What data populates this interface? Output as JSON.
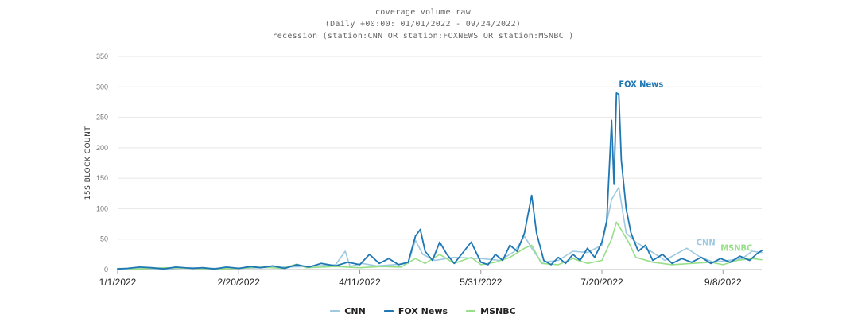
{
  "chart_data": {
    "type": "line",
    "title": "coverage volume raw",
    "subtitle_lines": [
      "(Daily +00:00: 01/01/2022 - 09/24/2022)",
      "recession (station:CNN OR station:FOXNEWS OR station:MSNBC )"
    ],
    "ylabel": "15S BLOCK COUNT",
    "xlabel": "",
    "ylim": [
      0,
      350
    ],
    "yticks": [
      0,
      50,
      100,
      150,
      200,
      250,
      300,
      350
    ],
    "x_start": "2022-01-01",
    "x_end": "2022-09-24",
    "xticks": [
      {
        "date": "2022-01-01",
        "label": "1/1/2022"
      },
      {
        "date": "2022-02-20",
        "label": "2/20/2022"
      },
      {
        "date": "2022-04-11",
        "label": "4/11/2022"
      },
      {
        "date": "2022-05-31",
        "label": "5/31/2022"
      },
      {
        "date": "2022-07-20",
        "label": "7/20/2022"
      },
      {
        "date": "2022-09-08",
        "label": "9/8/2022"
      }
    ],
    "grid": true,
    "legend_position": "bottom",
    "series": [
      {
        "name": "CNN",
        "color": "#9ecae1",
        "points": [
          [
            "2022-01-01",
            0
          ],
          [
            "2022-01-10",
            2
          ],
          [
            "2022-01-20",
            1
          ],
          [
            "2022-02-01",
            3
          ],
          [
            "2022-02-10",
            2
          ],
          [
            "2022-02-20",
            2
          ],
          [
            "2022-03-01",
            3
          ],
          [
            "2022-03-10",
            4
          ],
          [
            "2022-03-20",
            5
          ],
          [
            "2022-04-01",
            8
          ],
          [
            "2022-04-05",
            30
          ],
          [
            "2022-04-07",
            5
          ],
          [
            "2022-04-12",
            10
          ],
          [
            "2022-04-18",
            6
          ],
          [
            "2022-04-25",
            8
          ],
          [
            "2022-05-01",
            10
          ],
          [
            "2022-05-04",
            48
          ],
          [
            "2022-05-07",
            25
          ],
          [
            "2022-05-12",
            15
          ],
          [
            "2022-05-20",
            20
          ],
          [
            "2022-05-31",
            18
          ],
          [
            "2022-06-08",
            15
          ],
          [
            "2022-06-14",
            30
          ],
          [
            "2022-06-18",
            55
          ],
          [
            "2022-06-21",
            35
          ],
          [
            "2022-06-25",
            12
          ],
          [
            "2022-07-02",
            15
          ],
          [
            "2022-07-08",
            30
          ],
          [
            "2022-07-14",
            28
          ],
          [
            "2022-07-20",
            40
          ],
          [
            "2022-07-24",
            115
          ],
          [
            "2022-07-27",
            135
          ],
          [
            "2022-07-30",
            60
          ],
          [
            "2022-08-03",
            45
          ],
          [
            "2022-08-10",
            28
          ],
          [
            "2022-08-15",
            15
          ],
          [
            "2022-08-24",
            35
          ],
          [
            "2022-08-29",
            22
          ],
          [
            "2022-09-04",
            12
          ],
          [
            "2022-09-10",
            15
          ],
          [
            "2022-09-16",
            18
          ],
          [
            "2022-09-20",
            30
          ],
          [
            "2022-09-24",
            28
          ]
        ]
      },
      {
        "name": "FOX News",
        "color": "#1f77b4",
        "points": [
          [
            "2022-01-01",
            1
          ],
          [
            "2022-01-05",
            2
          ],
          [
            "2022-01-10",
            4
          ],
          [
            "2022-01-15",
            3
          ],
          [
            "2022-01-20",
            1
          ],
          [
            "2022-01-25",
            4
          ],
          [
            "2022-02-01",
            2
          ],
          [
            "2022-02-05",
            3
          ],
          [
            "2022-02-10",
            1
          ],
          [
            "2022-02-15",
            4
          ],
          [
            "2022-02-20",
            2
          ],
          [
            "2022-02-25",
            5
          ],
          [
            "2022-03-01",
            3
          ],
          [
            "2022-03-06",
            6
          ],
          [
            "2022-03-11",
            2
          ],
          [
            "2022-03-16",
            8
          ],
          [
            "2022-03-21",
            4
          ],
          [
            "2022-03-26",
            10
          ],
          [
            "2022-04-01",
            6
          ],
          [
            "2022-04-06",
            12
          ],
          [
            "2022-04-11",
            8
          ],
          [
            "2022-04-15",
            25
          ],
          [
            "2022-04-19",
            10
          ],
          [
            "2022-04-23",
            18
          ],
          [
            "2022-04-27",
            8
          ],
          [
            "2022-05-01",
            12
          ],
          [
            "2022-05-04",
            55
          ],
          [
            "2022-05-06",
            66
          ],
          [
            "2022-05-08",
            30
          ],
          [
            "2022-05-11",
            15
          ],
          [
            "2022-05-14",
            45
          ],
          [
            "2022-05-17",
            25
          ],
          [
            "2022-05-20",
            10
          ],
          [
            "2022-05-24",
            30
          ],
          [
            "2022-05-27",
            45
          ],
          [
            "2022-05-31",
            12
          ],
          [
            "2022-06-03",
            8
          ],
          [
            "2022-06-06",
            25
          ],
          [
            "2022-06-09",
            15
          ],
          [
            "2022-06-12",
            40
          ],
          [
            "2022-06-15",
            30
          ],
          [
            "2022-06-18",
            60
          ],
          [
            "2022-06-21",
            122
          ],
          [
            "2022-06-23",
            60
          ],
          [
            "2022-06-26",
            15
          ],
          [
            "2022-06-29",
            8
          ],
          [
            "2022-07-02",
            20
          ],
          [
            "2022-07-05",
            10
          ],
          [
            "2022-07-08",
            25
          ],
          [
            "2022-07-11",
            15
          ],
          [
            "2022-07-14",
            35
          ],
          [
            "2022-07-17",
            20
          ],
          [
            "2022-07-20",
            45
          ],
          [
            "2022-07-22",
            80
          ],
          [
            "2022-07-24",
            245
          ],
          [
            "2022-07-25",
            140
          ],
          [
            "2022-07-26",
            290
          ],
          [
            "2022-07-27",
            288
          ],
          [
            "2022-07-28",
            180
          ],
          [
            "2022-07-30",
            100
          ],
          [
            "2022-08-01",
            60
          ],
          [
            "2022-08-04",
            30
          ],
          [
            "2022-08-07",
            40
          ],
          [
            "2022-08-10",
            15
          ],
          [
            "2022-08-14",
            25
          ],
          [
            "2022-08-18",
            10
          ],
          [
            "2022-08-22",
            18
          ],
          [
            "2022-08-26",
            12
          ],
          [
            "2022-08-30",
            20
          ],
          [
            "2022-09-03",
            10
          ],
          [
            "2022-09-07",
            18
          ],
          [
            "2022-09-11",
            12
          ],
          [
            "2022-09-15",
            22
          ],
          [
            "2022-09-19",
            15
          ],
          [
            "2022-09-22",
            26
          ],
          [
            "2022-09-24",
            31
          ]
        ]
      },
      {
        "name": "MSNBC",
        "color": "#98df8a",
        "points": [
          [
            "2022-01-01",
            2
          ],
          [
            "2022-01-10",
            1
          ],
          [
            "2022-01-20",
            3
          ],
          [
            "2022-02-01",
            2
          ],
          [
            "2022-02-10",
            1
          ],
          [
            "2022-02-20",
            2
          ],
          [
            "2022-03-01",
            4
          ],
          [
            "2022-03-10",
            2
          ],
          [
            "2022-03-16",
            9
          ],
          [
            "2022-03-20",
            3
          ],
          [
            "2022-04-01",
            5
          ],
          [
            "2022-04-11",
            3
          ],
          [
            "2022-04-20",
            5
          ],
          [
            "2022-04-28",
            4
          ],
          [
            "2022-05-04",
            18
          ],
          [
            "2022-05-08",
            10
          ],
          [
            "2022-05-14",
            25
          ],
          [
            "2022-05-20",
            10
          ],
          [
            "2022-05-27",
            20
          ],
          [
            "2022-05-31",
            8
          ],
          [
            "2022-06-06",
            12
          ],
          [
            "2022-06-12",
            20
          ],
          [
            "2022-06-18",
            35
          ],
          [
            "2022-06-21",
            40
          ],
          [
            "2022-06-25",
            10
          ],
          [
            "2022-07-02",
            8
          ],
          [
            "2022-07-08",
            18
          ],
          [
            "2022-07-14",
            10
          ],
          [
            "2022-07-20",
            15
          ],
          [
            "2022-07-24",
            50
          ],
          [
            "2022-07-26",
            78
          ],
          [
            "2022-07-28",
            65
          ],
          [
            "2022-07-31",
            45
          ],
          [
            "2022-08-03",
            20
          ],
          [
            "2022-08-10",
            12
          ],
          [
            "2022-08-18",
            8
          ],
          [
            "2022-08-26",
            10
          ],
          [
            "2022-09-03",
            12
          ],
          [
            "2022-09-08",
            8
          ],
          [
            "2022-09-14",
            15
          ],
          [
            "2022-09-20",
            18
          ],
          [
            "2022-09-24",
            16
          ]
        ]
      }
    ],
    "end_labels": [
      {
        "series": "FOX News",
        "text": "FOX News",
        "date": "2022-07-27",
        "value": 300
      },
      {
        "series": "CNN",
        "text": "CNN",
        "date": "2022-08-28",
        "value": 40
      },
      {
        "series": "MSNBC",
        "text": "MSNBC",
        "date": "2022-09-07",
        "value": 31
      }
    ]
  },
  "legend": [
    {
      "name": "CNN",
      "color": "#9ecae1"
    },
    {
      "name": "FOX News",
      "color": "#1f77b4"
    },
    {
      "name": "MSNBC",
      "color": "#98df8a"
    }
  ]
}
